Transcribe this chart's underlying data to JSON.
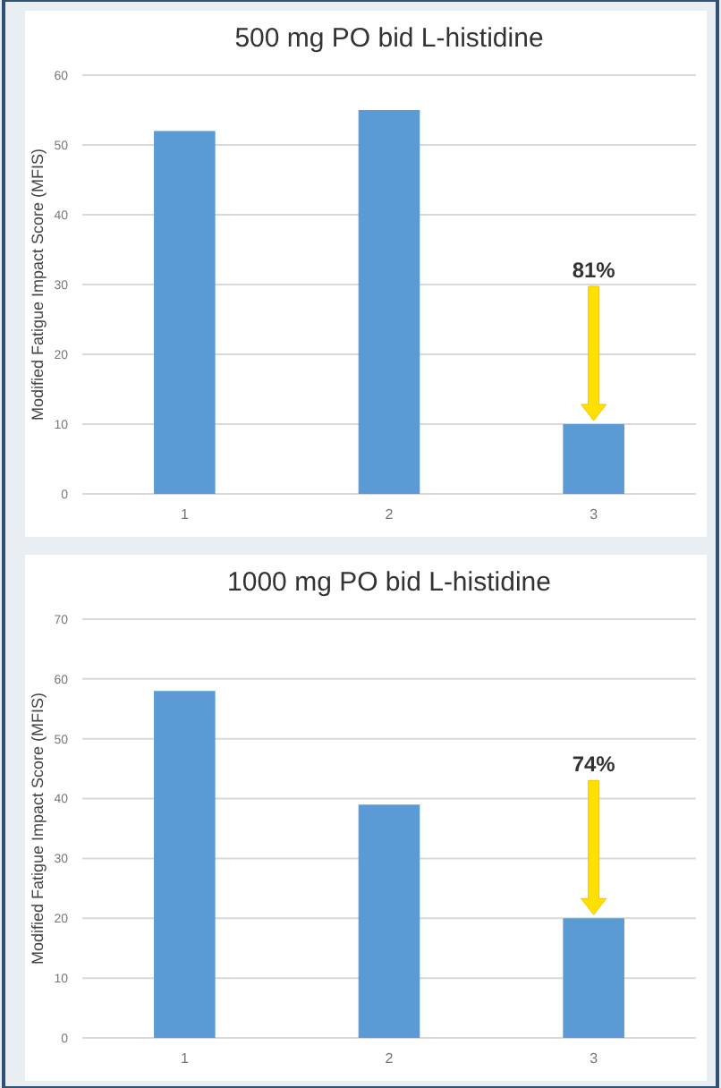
{
  "chart_data": [
    {
      "type": "bar",
      "title": "500 mg PO bid L-histidine",
      "ylabel": "Modified Fatigue Impact Score (MFIS)",
      "categories": [
        "1",
        "2",
        "3"
      ],
      "values": [
        52,
        55,
        10
      ],
      "color": "#5b9bd5",
      "ylim": [
        0,
        60
      ],
      "yticks": [
        0,
        10,
        20,
        30,
        40,
        50,
        60
      ],
      "grid": "y",
      "annotations": [
        "81%"
      ]
    },
    {
      "type": "bar",
      "title": "1000 mg PO bid L-histidine",
      "ylabel": "Modified Fatigue Impact Score (MFIS)",
      "categories": [
        "1",
        "2",
        "3"
      ],
      "values": [
        58,
        39,
        20
      ],
      "color": "#5b9bd5",
      "ylim": [
        0,
        70
      ],
      "yticks": [
        0,
        10,
        20,
        30,
        40,
        50,
        60,
        70
      ],
      "grid": "y",
      "annotations": [
        "74%"
      ]
    }
  ]
}
